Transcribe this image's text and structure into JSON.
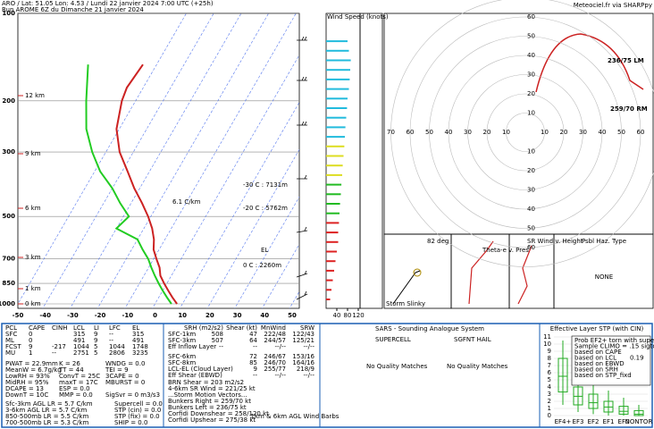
{
  "header": {
    "location": "ARO / Lat: 51.05 Lon: 4.53 / Lundi 22 janvier 2024  7:00 UTC (+25h)",
    "run": "Run AROME 6Z du Dimanche 21 janvier 2024",
    "source": "Meteociel.fr via SHARPpy"
  },
  "chart_data": [
    {
      "type": "skewt",
      "pressure_ticks": [
        100,
        200,
        300,
        500,
        700,
        850,
        1000
      ],
      "temp_ticks": [
        -50,
        -40,
        -30,
        -20,
        -10,
        0,
        10,
        20,
        30,
        40,
        50
      ],
      "height_labels": [
        "12 km",
        "9 km",
        "6 km",
        "3 km",
        "1 km",
        "0 km"
      ],
      "annotations": [
        "6.1 C/km",
        "-30 C : 7131m",
        "-20 C : 5762m",
        "0 C : 2260m",
        "EL"
      ],
      "series": [
        {
          "name": "Temperature",
          "color": "#cc2222",
          "pressure": [
            1000,
            950,
            900,
            850,
            800,
            750,
            700,
            650,
            600,
            550,
            500,
            450,
            400,
            350,
            300,
            250,
            200,
            180,
            150
          ],
          "values": [
            8,
            5,
            2,
            -1,
            -4,
            -6,
            -9,
            -12,
            -14,
            -17,
            -21,
            -26,
            -32,
            -38,
            -45,
            -51,
            -55,
            -56,
            -55
          ]
        },
        {
          "name": "Dewpoint",
          "color": "#22cc22",
          "pressure": [
            1000,
            950,
            900,
            850,
            800,
            750,
            700,
            650,
            600,
            550,
            500,
            450,
            400,
            350,
            300,
            250,
            200,
            150
          ],
          "values": [
            6,
            3,
            0,
            -3,
            -6,
            -9,
            -12,
            -16,
            -20,
            -30,
            -28,
            -34,
            -40,
            -48,
            -55,
            -62,
            -68,
            -75
          ]
        }
      ]
    },
    {
      "type": "hbar",
      "title": "Wind Speed (knots)",
      "xticks": [
        40,
        80,
        120
      ],
      "values": [
        15,
        20,
        25,
        30,
        35,
        40,
        45,
        45,
        48,
        50,
        52,
        55,
        57,
        60,
        62,
        65,
        68,
        70,
        72,
        75,
        78,
        80,
        85,
        88,
        90,
        92,
        85,
        80
      ]
    },
    {
      "type": "boxplot",
      "title": "Effective Layer STP (with CIN)",
      "yticks": [
        0,
        1,
        2,
        3,
        4,
        5,
        6,
        7,
        8,
        9,
        10,
        11
      ],
      "ylim": [
        0,
        11.5
      ],
      "color": "#22aa22",
      "categories": [
        "EF4+",
        "EF3",
        "EF2",
        "EF1",
        "EF0",
        "NONTOR"
      ],
      "boxes": [
        [
          1.5,
          3.3,
          5.5,
          8,
          10.5
        ],
        [
          0.5,
          1.5,
          2.7,
          4,
          6
        ],
        [
          0.2,
          1,
          1.8,
          3,
          5
        ],
        [
          0,
          0.5,
          1.2,
          2,
          3.5
        ],
        [
          0,
          0.2,
          0.6,
          1.3,
          2.5
        ],
        [
          0,
          0,
          0.2,
          0.7,
          1.5
        ]
      ],
      "legend": [
        "Prob EF2+ torn with supercell",
        "Sample CLIMO = .15 sigtor",
        "based on CAPE",
        "based on LCL",
        "0.19",
        "based on EBWD",
        "based on SRH",
        "based on STP_fixd"
      ]
    }
  ],
  "hodograph": {
    "ring_labels": [
      10,
      20,
      30,
      40,
      50,
      60,
      70
    ],
    "labels": [
      "236/75 LM",
      "259/70 RM"
    ]
  },
  "panels": {
    "angle": "82 deg",
    "slinky": "Storm Slinky",
    "theta": "Theta-e v. Pres",
    "srwind": "SR Wind v. Height",
    "hazard_title": "Psbl Haz. Type",
    "hazard": "NONE"
  },
  "parcel_table": {
    "columns": [
      "PCL",
      "CAPE",
      "CINH",
      "LCL",
      "LI",
      "LFC",
      "EL"
    ],
    "rows": [
      [
        "SFC",
        "0",
        null,
        "315",
        "9",
        "--",
        "315"
      ],
      [
        "ML",
        "0",
        null,
        "491",
        "9",
        "--",
        "491"
      ],
      [
        "FCST",
        "9",
        "-217",
        "1044",
        "5",
        "1044",
        "1748"
      ],
      [
        "MU",
        "1",
        "--",
        "2751",
        "5",
        "2806",
        "3235"
      ]
    ]
  },
  "indices": [
    "PWAT = 22.9mm",
    "K = 26",
    "WNDG = 0.0",
    "MeanW = 6.7g/kg",
    "TT = 44",
    "TEI = 9",
    "LowRH = 93%",
    "ConvT = 25C",
    "3CAPE = 0",
    "MidRH = 95%",
    "maxT = 17C",
    "MBURST = 0",
    "DCAPE = 13",
    "ESP = 0.0",
    null,
    "DownT = 10C",
    "MMP = 0.0",
    "SigSvr = 0 m3/s3"
  ],
  "lapse_rates": [
    "Sfc-3km AGL LR = 5.7 C/km",
    "3-6km AGL LR = 5.7 C/km",
    "850-500mb LR = 5.5 C/km",
    "700-500mb LR = 5.3 C/km"
  ],
  "composites": [
    "Supercell = 0.0",
    "STP (cin) = 0.0",
    "STP (fix) = 0.0",
    "SHIP = 0.0"
  ],
  "kinematics": {
    "columns": [
      "SRH (m2/s2)",
      "Shear (kt)",
      "MnWind",
      "SRW"
    ],
    "rows": [
      [
        "SFC-1km",
        "508",
        "47",
        "222/48",
        "122/43"
      ],
      [
        "SFC-3km",
        "507",
        "64",
        "244/57",
        "125/21"
      ],
      [
        "Eff Inflow Layer",
        "--",
        "--",
        "--/--",
        "--/--"
      ],
      [
        "SFC-6km",
        null,
        "72",
        "246/67",
        "153/16"
      ],
      [
        "SFC-8km",
        null,
        "85",
        "246/70",
        "164/16"
      ],
      [
        "LCL-EL (Cloud Layer)",
        null,
        "9",
        "255/77",
        "218/9"
      ],
      [
        "Eff Shear (EBWD)",
        null,
        "--",
        "--/--",
        "--/--"
      ]
    ],
    "lines": [
      "BRN Shear = 203 m2/s2",
      "4-6km SR Wind = 221/25 kt",
      "...Storm Motion Vectors...",
      "Bunkers Right = 259/70 kt",
      "Bunkers Left = 236/75 kt",
      "Corfidi Downshear = 258/120 kt",
      "Corfidi Upshear = 275/38 kt"
    ],
    "barbs": "1km & 6km AGL Wind Barbs"
  },
  "sars": {
    "title": "SARS - Sounding Analogue System",
    "supercell": "SUPERCELL",
    "hail": "SGFNT HAIL",
    "supercell_result": "No Quality Matches",
    "hail_result": "No Quality Matches"
  }
}
